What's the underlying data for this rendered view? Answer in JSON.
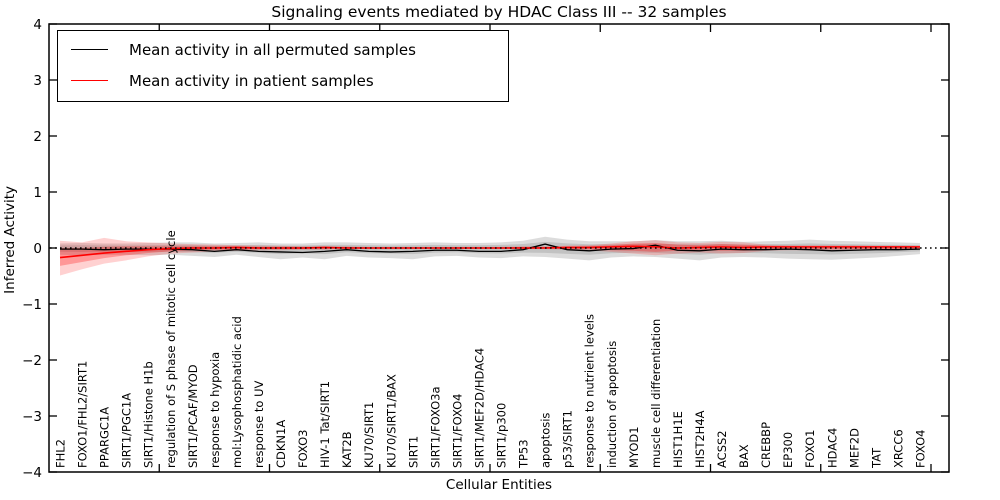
{
  "chart_data": {
    "type": "line",
    "title": "Signaling events mediated by HDAC Class III -- 32 samples",
    "xlabel": "Cellular Entities",
    "ylabel": "Inferred Activity",
    "ylim": [
      -4,
      4
    ],
    "ytick_values": [
      4,
      3,
      2,
      1,
      0,
      -1,
      -2,
      -3,
      -4
    ],
    "ytick_labels": [
      "4",
      "3",
      "2",
      "1",
      "0",
      "−1",
      "−2",
      "−3",
      "−4"
    ],
    "x_major_ticks": [
      5,
      10,
      15,
      20,
      25,
      30,
      35,
      40
    ],
    "legend_position": "upper left",
    "grid": false,
    "zero_line": {
      "value": 0,
      "style": "dotted",
      "color": "#000000"
    },
    "categories": [
      "FHL2",
      "FOXO1/FHL2/SIRT1",
      "PPARGC1A",
      "SIRT1/PGC1A",
      "SIRT1/Histone H1b",
      "regulation of S phase of mitotic cell cycle",
      "SIRT1/PCAF/MYOD",
      "response to hypoxia",
      "mol:Lysophosphatidic acid",
      "response to UV",
      "CDKN1A",
      "FOXO3",
      "HIV-1 Tat/SIRT1",
      "KAT2B",
      "KU70/SIRT1",
      "KU70/SIRT1/BAX",
      "SIRT1",
      "SIRT1/FOXO3a",
      "SIRT1/FOXO4",
      "SIRT1/MEF2D/HDAC4",
      "SIRT1/p300",
      "TP53",
      "apoptosis",
      "p53/SIRT1",
      "response to nutrient levels",
      "induction of apoptosis",
      "MYOD1",
      "muscle cell differentiation",
      "HIST1H1E",
      "HIST2H4A",
      "ACSS2",
      "BAX",
      "CREBBP",
      "EP300",
      "FOXO1",
      "HDAC4",
      "MEF2D",
      "TAT",
      "XRCC6",
      "FOXO4"
    ],
    "series": [
      {
        "name": "Mean activity in all permuted samples",
        "color": "#000000",
        "values": [
          -0.02,
          -0.02,
          -0.03,
          -0.02,
          -0.02,
          -0.02,
          -0.03,
          -0.06,
          -0.03,
          -0.06,
          -0.07,
          -0.08,
          -0.06,
          -0.03,
          -0.06,
          -0.07,
          -0.06,
          -0.04,
          -0.04,
          -0.06,
          -0.06,
          -0.03,
          0.07,
          -0.03,
          -0.05,
          -0.02,
          -0.01,
          0.05,
          -0.04,
          -0.05,
          -0.02,
          -0.03,
          -0.03,
          -0.02,
          -0.03,
          -0.05,
          -0.04,
          -0.03,
          -0.03,
          -0.02
        ]
      },
      {
        "name": "Mean activity in patient samples",
        "color": "#ff0000",
        "values": [
          -0.17,
          -0.13,
          -0.09,
          -0.06,
          -0.03,
          -0.01,
          0.0,
          0.0,
          0.01,
          0.0,
          0.0,
          0.0,
          0.01,
          0.0,
          0.0,
          0.0,
          0.0,
          0.0,
          0.0,
          0.0,
          0.0,
          0.0,
          0.0,
          0.01,
          0.01,
          0.02,
          0.03,
          0.02,
          0.0,
          0.01,
          0.02,
          0.01,
          0.02,
          0.02,
          0.02,
          0.02,
          0.02,
          0.02,
          0.02,
          0.02
        ]
      }
    ],
    "bands": [
      {
        "name": "permuted samples range",
        "color": "rgba(130,130,130,0.28)",
        "lo": [
          -0.12,
          -0.13,
          -0.12,
          -0.12,
          -0.13,
          -0.12,
          -0.14,
          -0.16,
          -0.12,
          -0.16,
          -0.2,
          -0.17,
          -0.2,
          -0.14,
          -0.17,
          -0.18,
          -0.2,
          -0.15,
          -0.14,
          -0.17,
          -0.18,
          -0.15,
          -0.16,
          -0.19,
          -0.22,
          -0.17,
          -0.15,
          -0.16,
          -0.19,
          -0.22,
          -0.17,
          -0.16,
          -0.17,
          -0.19,
          -0.2,
          -0.21,
          -0.19,
          -0.17,
          -0.14,
          -0.11
        ],
        "hi": [
          0.08,
          0.09,
          0.08,
          0.08,
          0.09,
          0.1,
          0.1,
          0.08,
          0.09,
          0.1,
          0.08,
          0.08,
          0.1,
          0.1,
          0.09,
          0.08,
          0.09,
          0.1,
          0.09,
          0.09,
          0.1,
          0.13,
          0.2,
          0.15,
          0.12,
          0.12,
          0.12,
          0.14,
          0.12,
          0.12,
          0.13,
          0.11,
          0.12,
          0.13,
          0.15,
          0.13,
          0.12,
          0.11,
          0.1,
          0.09
        ]
      },
      {
        "name": "patient samples outer range",
        "color": "rgba(255,0,0,0.18)",
        "lo": [
          -0.49,
          -0.38,
          -0.28,
          -0.22,
          -0.15,
          -0.1,
          -0.08,
          -0.06,
          -0.05,
          -0.04,
          -0.04,
          -0.03,
          -0.03,
          -0.02,
          -0.02,
          -0.02,
          -0.02,
          -0.02,
          -0.02,
          -0.02,
          -0.02,
          -0.02,
          -0.02,
          -0.03,
          -0.04,
          -0.07,
          -0.1,
          -0.13,
          -0.1,
          -0.08,
          -0.1,
          -0.09,
          -0.05,
          -0.04,
          -0.04,
          -0.04,
          -0.03,
          -0.03,
          -0.03,
          -0.03
        ],
        "hi": [
          0.13,
          0.1,
          0.18,
          0.12,
          0.1,
          0.08,
          0.07,
          0.06,
          0.05,
          0.04,
          0.04,
          0.03,
          0.03,
          0.03,
          0.02,
          0.02,
          0.02,
          0.02,
          0.02,
          0.02,
          0.02,
          0.03,
          0.03,
          0.04,
          0.05,
          0.08,
          0.12,
          0.14,
          0.1,
          0.09,
          0.11,
          0.1,
          0.06,
          0.05,
          0.05,
          0.05,
          0.05,
          0.04,
          0.04,
          0.04
        ]
      },
      {
        "name": "patient samples inner range",
        "color": "rgba(255,0,0,0.28)",
        "lo": [
          -0.32,
          -0.25,
          -0.18,
          -0.13,
          -0.09,
          -0.06,
          -0.04,
          -0.03,
          -0.03,
          -0.02,
          -0.02,
          -0.02,
          -0.02,
          -0.01,
          -0.01,
          -0.01,
          -0.01,
          -0.01,
          -0.01,
          -0.01,
          -0.01,
          -0.01,
          -0.01,
          -0.02,
          -0.02,
          -0.04,
          -0.05,
          -0.07,
          -0.05,
          -0.04,
          -0.05,
          -0.05,
          -0.03,
          -0.02,
          -0.02,
          -0.02,
          -0.02,
          -0.02,
          -0.02,
          -0.02
        ],
        "hi": [
          0.0,
          0.0,
          0.02,
          0.03,
          0.03,
          0.03,
          0.03,
          0.03,
          0.03,
          0.02,
          0.02,
          0.02,
          0.02,
          0.02,
          0.01,
          0.01,
          0.01,
          0.01,
          0.01,
          0.01,
          0.01,
          0.02,
          0.02,
          0.02,
          0.03,
          0.05,
          0.08,
          0.09,
          0.06,
          0.05,
          0.07,
          0.06,
          0.04,
          0.03,
          0.03,
          0.03,
          0.03,
          0.03,
          0.03,
          0.03
        ]
      }
    ]
  }
}
